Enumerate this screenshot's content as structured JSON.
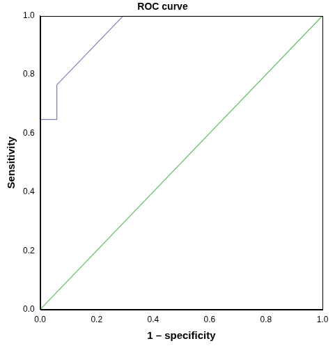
{
  "chart_data": {
    "type": "line",
    "title": "ROC curve",
    "x_label": "1 – specificity",
    "y_label": "Sensitivity",
    "series": [
      {
        "color": "#7f84b8",
        "x": [
          0,
          0,
          0.059,
          0.059,
          0.294,
          1
        ],
        "values": [
          0,
          0.647,
          0.647,
          0.765,
          1,
          1
        ]
      },
      {
        "color": "#6cc06a",
        "x": [
          0,
          1
        ],
        "values": [
          0,
          1
        ]
      }
    ],
    "xlim": [
      0,
      1
    ],
    "ylim": [
      0,
      1
    ],
    "xticks": [
      {
        "value": 0,
        "label": "0.0"
      },
      0.2,
      0.4,
      0.6,
      0.8,
      {
        "value": 1,
        "label": "1.0"
      }
    ],
    "yticks": [
      {
        "value": 0,
        "label": "0.0"
      },
      0.2,
      0.4,
      0.6,
      0.8,
      {
        "value": 1,
        "label": "1.0"
      }
    ],
    "grid": false
  }
}
